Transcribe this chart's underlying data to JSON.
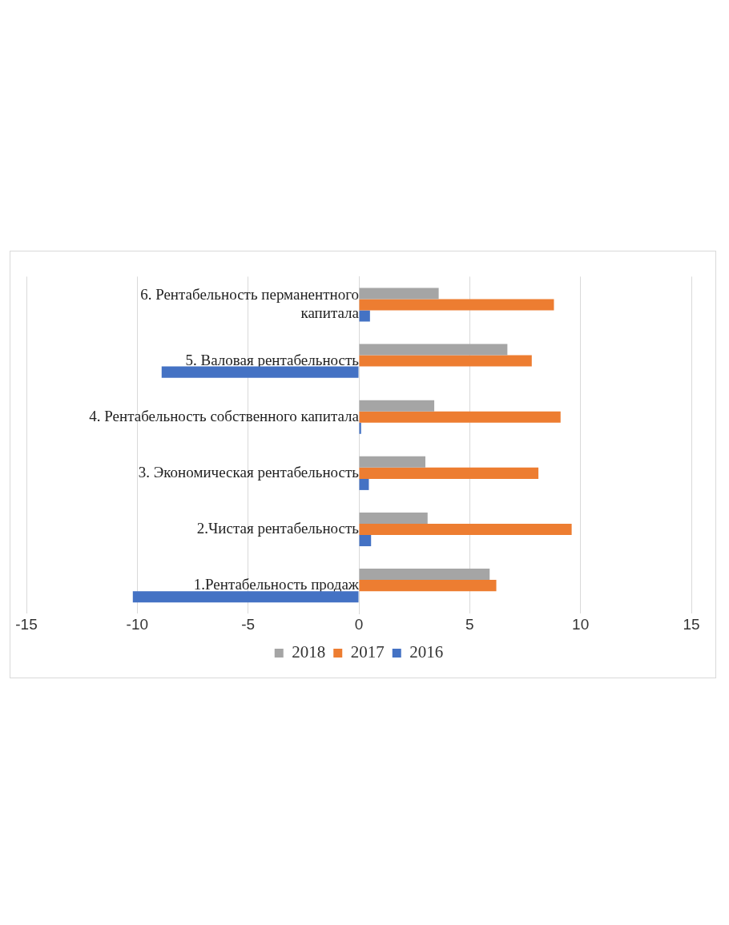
{
  "chart_data": {
    "type": "bar",
    "orientation": "horizontal",
    "categories": [
      "6. Рентабельность перманентного капитала",
      "5. Валовая рентабельность",
      "4. Рентабельность собственного капитала",
      "3. Экономическая рентабельность",
      "2.Чистая рентабельность",
      "1.Рентабельность продаж"
    ],
    "series": [
      {
        "name": "2018",
        "color": "#a5a5a5",
        "values": [
          3.6,
          6.7,
          3.4,
          3.0,
          3.1,
          5.9
        ]
      },
      {
        "name": "2017",
        "color": "#ed7d31",
        "values": [
          8.8,
          7.8,
          9.1,
          8.1,
          9.6,
          6.2
        ]
      },
      {
        "name": "2016",
        "color": "#4472c4",
        "values": [
          0.5,
          -8.9,
          0.1,
          0.45,
          0.55,
          -10.2
        ]
      }
    ],
    "xlim": [
      -15,
      15
    ],
    "xticks": [
      -15,
      -10,
      -5,
      0,
      5,
      10,
      15
    ],
    "grid": "x",
    "legend": "bottom"
  }
}
